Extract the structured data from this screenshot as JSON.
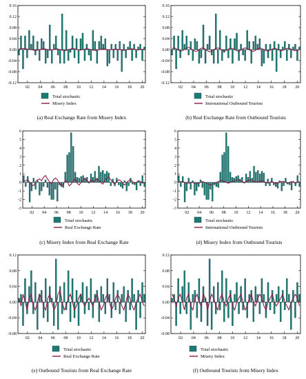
{
  "colors": {
    "bar": "#1e7a74",
    "bar_stroke": "#0c3b38",
    "line": "#8b1a4a",
    "frame": "#000000"
  },
  "chart_data": [
    {
      "type": "bar",
      "title": "(a) Real Exchange Rate from Misery Index",
      "ylim": [
        -0.12,
        0.16
      ],
      "yticks": [
        "0.16",
        "0.12",
        "0.08",
        "0.04",
        "0.00",
        "-0.04",
        "-0.08",
        "-0.12"
      ],
      "yvals": [
        0.16,
        0.12,
        0.08,
        0.04,
        0,
        -0.04,
        -0.08,
        -0.12
      ],
      "xticks": [
        "02",
        "04",
        "06",
        "08",
        "10",
        "12",
        "14",
        "16",
        "18",
        "20"
      ],
      "xlim": [
        2000.5,
        2020.5
      ],
      "legend": [
        "Total stochastic",
        "Misery Index"
      ],
      "bars": [
        -0.02,
        0.05,
        -0.07,
        0.05,
        -0.03,
        0.07,
        0.02,
        0.05,
        -0.02,
        0.03,
        -0.04,
        0.04,
        0.03,
        -0.05,
        -0.03,
        0.09,
        -0.05,
        0.02,
        0.05,
        -0.02,
        -0.05,
        0.13,
        -0.05,
        0.07,
        -0.04,
        -0.01,
        0.05,
        -0.03,
        0.04,
        -0.05,
        0.04,
        0.06,
        -0.04,
        0.02,
        -0.02,
        -0.04,
        0.07,
        0.03,
        -0.05,
        0.03,
        0.05,
        0.02,
        0.04,
        -0.06,
        -0.05,
        0.02,
        -0.03,
        0.02,
        -0.04,
        0.03,
        -0.08,
        0.02,
        -0.03,
        0.01,
        0.03,
        -0.04,
        0.02,
        -0.03,
        0.01,
        0.02,
        -0.04,
        0.01
      ],
      "line": [
        0.002,
        0.003,
        0.004,
        0.003,
        0.002,
        0.001,
        0.0,
        -0.002,
        -0.003,
        -0.002,
        0.0,
        0.002,
        0.003,
        0.002,
        0.0,
        -0.002,
        -0.001,
        0.001,
        0.003,
        0.002,
        0.0,
        -0.002,
        -0.004,
        -0.003,
        0.0,
        0.002,
        0.004,
        0.003,
        0.001,
        -0.001,
        -0.002,
        0.0,
        0.002,
        0.003,
        0.002,
        0.0,
        -0.002,
        -0.003,
        -0.002,
        0.0,
        0.002,
        0.003,
        0.002,
        0.0,
        -0.001,
        0.0,
        0.001,
        0.002,
        0.001,
        0.0,
        -0.002,
        -0.003,
        -0.001,
        0.001,
        0.002,
        0.003,
        0.002,
        0.0,
        -0.001,
        0.0,
        0.001,
        0.002
      ]
    },
    {
      "type": "bar",
      "title": "(b) Real Exchange Rate from Outbound Tourists",
      "ylim": [
        -0.12,
        0.16
      ],
      "yticks": [
        "0.16",
        "0.12",
        "0.08",
        "0.04",
        "0.00",
        "-0.04",
        "-0.08",
        "-0.12"
      ],
      "yvals": [
        0.16,
        0.12,
        0.08,
        0.04,
        0,
        -0.04,
        -0.08,
        -0.12
      ],
      "xticks": [
        "02",
        "04",
        "06",
        "08",
        "10",
        "12",
        "14",
        "16",
        "18",
        "20"
      ],
      "xlim": [
        2000.5,
        2020.5
      ],
      "legend": [
        "Total stochastic",
        "International Outbound Tourists"
      ],
      "bars": [
        -0.02,
        0.05,
        -0.07,
        0.05,
        -0.03,
        0.07,
        0.02,
        0.05,
        -0.02,
        0.03,
        -0.04,
        0.04,
        0.03,
        -0.05,
        -0.03,
        0.09,
        -0.05,
        0.02,
        0.05,
        -0.02,
        -0.05,
        0.13,
        -0.05,
        0.07,
        -0.04,
        -0.01,
        0.05,
        -0.03,
        0.04,
        -0.05,
        0.04,
        0.06,
        -0.04,
        0.02,
        -0.02,
        -0.04,
        0.07,
        0.03,
        -0.05,
        0.03,
        0.05,
        0.02,
        0.04,
        -0.06,
        -0.05,
        0.02,
        -0.03,
        0.02,
        -0.04,
        0.03,
        -0.08,
        0.02,
        -0.03,
        0.01,
        0.03,
        -0.04,
        0.02,
        -0.03,
        0.01,
        0.02,
        -0.04,
        0.01
      ],
      "line": [
        0.004,
        0.006,
        0.003,
        -0.002,
        -0.006,
        -0.004,
        0.001,
        0.006,
        0.008,
        0.004,
        -0.002,
        -0.006,
        -0.005,
        0.0,
        0.005,
        0.006,
        0.002,
        -0.004,
        -0.008,
        -0.006,
        0.0,
        0.004,
        0.006,
        0.003,
        -0.002,
        -0.005,
        -0.003,
        0.002,
        0.005,
        0.004,
        0.0,
        -0.004,
        -0.006,
        -0.002,
        0.003,
        0.006,
        0.004,
        -0.001,
        -0.005,
        -0.006,
        -0.002,
        0.003,
        0.006,
        0.004,
        0.0,
        -0.004,
        -0.005,
        -0.002,
        0.002,
        0.005,
        0.003,
        -0.001,
        -0.004,
        -0.003,
        0.001,
        0.004,
        0.005,
        0.002,
        -0.002,
        -0.004,
        -0.002,
        0.001
      ]
    },
    {
      "type": "bar",
      "title": "(c) Misery Index from Real Exchange Rate",
      "ylim": [
        -3,
        6
      ],
      "yticks": [
        "6",
        "5",
        "4",
        "3",
        "2",
        "1",
        "0",
        "-1",
        "-2",
        "-3"
      ],
      "yvals": [
        6,
        5,
        4,
        3,
        2,
        1,
        0,
        -1,
        -2,
        -3
      ],
      "xticks": [
        "02",
        "04",
        "06",
        "08",
        "10",
        "12",
        "14",
        "16",
        "18",
        "20"
      ],
      "xlim": [
        2000.5,
        2020.5
      ],
      "legend": [
        "Total stochastic",
        "Real Exchange Rate"
      ],
      "bars": [
        0.8,
        -0.5,
        0.7,
        -2.3,
        -1.0,
        0.5,
        -0.8,
        0.2,
        -1.5,
        -1.0,
        -0.5,
        0.3,
        -0.6,
        -1.5,
        -2.0,
        -2.0,
        -0.8,
        -2.2,
        -0.3,
        -0.5,
        -0.6,
        1.2,
        3.2,
        3.5,
        5.8,
        4.2,
        1.2,
        0.6,
        0.5,
        0.7,
        0.8,
        0.4,
        0.6,
        -0.1,
        1.0,
        0.6,
        1.3,
        0.5,
        1.9,
        1.2,
        1.4,
        1.0,
        1.3,
        1.1,
        -0.4,
        0.4,
        -0.4,
        0.5,
        -0.3,
        -0.5,
        -0.7,
        0.2,
        -1.0,
        -0.4,
        0.5,
        -0.2,
        -0.3,
        -0.9,
        0.1,
        -0.4,
        0.8,
        -0.5
      ],
      "line": [
        0.1,
        0.2,
        0.3,
        0.0,
        -0.3,
        -0.4,
        0.1,
        0.3,
        0.4,
        0.2,
        0.6,
        0.8,
        0.4,
        0.1,
        -0.2,
        0.3,
        0.5,
        0.3,
        -0.1,
        -0.4,
        -0.2,
        0.2,
        0.1,
        -0.4,
        -0.2,
        0.2,
        0.4,
        -0.1,
        -0.3,
        0.0,
        0.3,
        0.5,
        0.2,
        0.0,
        0.3,
        0.1,
        0.2,
        0.4,
        0.2,
        0.0,
        -0.2,
        0.2,
        0.5,
        0.6,
        0.3,
        0.0,
        -0.2,
        0.1,
        0.3,
        0.2,
        -0.1,
        -0.3,
        0.0,
        0.2,
        0.3,
        0.1,
        -0.1,
        0.0,
        0.2,
        0.1,
        -0.1,
        0.0
      ]
    },
    {
      "type": "bar",
      "title": "(d) Misery Index from Outbound Tourists",
      "ylim": [
        -3,
        6
      ],
      "yticks": [
        "6",
        "5",
        "4",
        "3",
        "2",
        "1",
        "0",
        "-1",
        "-2",
        "-3"
      ],
      "yvals": [
        6,
        5,
        4,
        3,
        2,
        1,
        0,
        -1,
        -2,
        -3
      ],
      "xticks": [
        "02",
        "04",
        "06",
        "08",
        "10",
        "12",
        "14",
        "16",
        "18",
        "20"
      ],
      "xlim": [
        2000.5,
        2020.5
      ],
      "legend": [
        "Total stochastic",
        "International Outbound Tourists"
      ],
      "bars": [
        0.8,
        -0.5,
        0.7,
        -2.3,
        -1.0,
        0.5,
        -0.8,
        0.2,
        -1.5,
        -1.0,
        -0.5,
        0.3,
        -0.6,
        -1.5,
        -2.0,
        -2.0,
        -0.8,
        -2.2,
        -0.3,
        -0.5,
        -0.6,
        1.2,
        3.2,
        3.5,
        5.8,
        4.2,
        1.2,
        0.6,
        0.5,
        0.7,
        0.8,
        0.4,
        0.6,
        -0.1,
        1.0,
        0.6,
        1.3,
        0.5,
        1.9,
        1.2,
        1.4,
        1.0,
        1.3,
        1.1,
        -0.4,
        0.4,
        -0.4,
        0.5,
        -0.3,
        -0.5,
        -0.7,
        0.2,
        -1.0,
        -0.4,
        0.5,
        -0.2,
        -0.3,
        -0.9,
        0.1,
        -0.4,
        0.8,
        -0.5
      ],
      "line": [
        0.0,
        0.1,
        0.1,
        0.0,
        -0.1,
        -0.1,
        0.0,
        0.0,
        -0.1,
        -0.2,
        -0.1,
        0.0,
        0.1,
        0.0,
        -0.1,
        -0.2,
        -0.3,
        -0.2,
        -0.1,
        0.0,
        0.1,
        0.2,
        0.2,
        0.1,
        0.0,
        -0.1,
        0.0,
        0.1,
        0.2,
        0.3,
        0.3,
        0.2,
        0.1,
        0.0,
        0.1,
        0.2,
        0.3,
        0.2,
        0.1,
        0.0,
        0.1,
        0.1,
        0.2,
        0.1,
        0.0,
        -0.1,
        0.0,
        0.1,
        0.0,
        -0.1,
        -0.1,
        0.0,
        0.1,
        0.1,
        0.0,
        -0.1,
        0.0,
        0.1,
        0.0,
        -0.1,
        0.0,
        0.1
      ]
    },
    {
      "type": "bar",
      "title": "(e) Outbound Tourists from Real Exchange Rate",
      "ylim": [
        -0.08,
        0.12
      ],
      "yticks": [
        "0.12",
        "0.08",
        "0.04",
        "0.00",
        "-0.04",
        "-0.08"
      ],
      "yvals": [
        0.12,
        0.08,
        0.04,
        0,
        -0.04,
        -0.08
      ],
      "xticks": [
        "02",
        "04",
        "06",
        "08",
        "10",
        "12",
        "14",
        "16",
        "18",
        "20"
      ],
      "xlim": [
        2000.5,
        2020.5
      ],
      "legend": [
        "Total stochastic",
        "Real Exchange Rate"
      ],
      "bars": [
        0.01,
        0.02,
        -0.06,
        0.06,
        -0.03,
        0.04,
        0.08,
        -0.03,
        0.05,
        -0.07,
        0.02,
        0.03,
        -0.04,
        0.06,
        -0.05,
        0.04,
        0.01,
        -0.06,
        0.11,
        -0.07,
        0.04,
        -0.03,
        0.05,
        -0.02,
        0.08,
        -0.05,
        0.06,
        -0.04,
        0.03,
        -0.06,
        0.02,
        0.05,
        -0.03,
        0.04,
        -0.02,
        0.06,
        -0.04,
        0.02,
        0.03,
        -0.05,
        0.04,
        0.02,
        -0.03,
        0.06,
        0.02,
        -0.04,
        0.05,
        -0.02,
        0.03,
        -0.03,
        0.02,
        0.04,
        -0.05,
        0.03,
        -0.02,
        0.06,
        0.02,
        -0.07,
        0.03,
        -0.04,
        0.05,
        0.02
      ],
      "line": [
        0.01,
        -0.01,
        0.02,
        0.0,
        -0.02,
        0.01,
        0.02,
        -0.01,
        -0.02,
        0.0,
        0.02,
        0.01,
        -0.01,
        -0.02,
        0.01,
        0.02,
        0.0,
        -0.02,
        -0.01,
        0.02,
        0.03,
        0.0,
        -0.02,
        -0.01,
        0.01,
        0.02,
        0.0,
        -0.02,
        -0.01,
        0.01,
        0.02,
        0.0,
        -0.01,
        0.0,
        0.01,
        0.0,
        -0.01,
        0.01,
        0.02,
        0.0,
        -0.02,
        -0.01,
        0.01,
        0.02,
        0.0,
        -0.02,
        -0.01,
        0.01,
        0.02,
        0.01,
        -0.01,
        -0.02,
        0.0,
        0.02,
        0.01,
        -0.01,
        -0.02,
        0.0,
        0.01,
        0.02,
        0.0,
        -0.01
      ]
    },
    {
      "type": "bar",
      "title": "(f) Outbound Tourists from Misery Index",
      "ylim": [
        -0.08,
        0.12
      ],
      "yticks": [
        "0.12",
        "0.08",
        "0.04",
        "0.00",
        "-0.04",
        "-0.08"
      ],
      "yvals": [
        0.12,
        0.08,
        0.04,
        0,
        -0.04,
        -0.08
      ],
      "xticks": [
        "02",
        "04",
        "06",
        "08",
        "10",
        "12",
        "14",
        "16",
        "18",
        "20"
      ],
      "xlim": [
        2000.5,
        2020.5
      ],
      "legend": [
        "Total stochastic",
        "Misery Index"
      ],
      "bars": [
        0.01,
        0.02,
        -0.06,
        0.06,
        -0.03,
        0.04,
        0.08,
        -0.03,
        0.05,
        -0.07,
        0.02,
        0.03,
        -0.04,
        0.06,
        -0.05,
        0.04,
        0.01,
        -0.06,
        0.11,
        -0.07,
        0.04,
        -0.03,
        0.05,
        -0.02,
        0.08,
        -0.05,
        0.06,
        -0.04,
        0.03,
        -0.06,
        0.02,
        0.05,
        -0.03,
        0.04,
        -0.02,
        0.06,
        -0.04,
        0.02,
        0.03,
        -0.05,
        0.04,
        0.02,
        -0.03,
        0.06,
        0.02,
        -0.04,
        0.05,
        -0.02,
        0.03,
        -0.03,
        0.02,
        0.04,
        -0.05,
        0.03,
        -0.02,
        0.06,
        0.02,
        -0.07,
        0.03,
        -0.04,
        0.05,
        0.02
      ],
      "line": [
        0.02,
        0.01,
        -0.01,
        0.01,
        0.02,
        0.0,
        -0.02,
        0.01,
        0.02,
        -0.01,
        -0.02,
        0.01,
        0.02,
        0.0,
        -0.01,
        0.02,
        0.01,
        -0.02,
        0.0,
        0.02,
        0.01,
        -0.01,
        -0.02,
        0.01,
        0.02,
        0.0,
        -0.01,
        0.01,
        0.02,
        -0.01,
        -0.02,
        0.0,
        0.01,
        0.02,
        0.0,
        -0.02,
        -0.01,
        0.01,
        0.02,
        0.0,
        -0.01,
        0.01,
        0.02,
        0.01,
        -0.01,
        -0.02,
        0.0,
        0.01,
        0.02,
        0.0,
        -0.01,
        0.0,
        0.01,
        0.02,
        0.0,
        -0.01,
        -0.02,
        0.0,
        0.01,
        0.02,
        0.01,
        -0.01
      ]
    }
  ]
}
